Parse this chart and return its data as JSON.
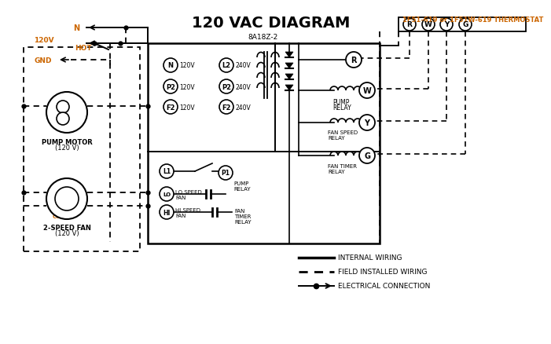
{
  "title": "120 VAC DIAGRAM",
  "bg_color": "#ffffff",
  "line_color": "#000000",
  "orange_color": "#cc6600",
  "thermostat_label": "1F51-619 or 1F51W-619 THERMOSTAT",
  "control_board_label": "8A18Z-2",
  "legend_internal": "INTERNAL WIRING",
  "legend_field": "FIELD INSTALLED WIRING",
  "legend_elec": "ELECTRICAL CONNECTION"
}
